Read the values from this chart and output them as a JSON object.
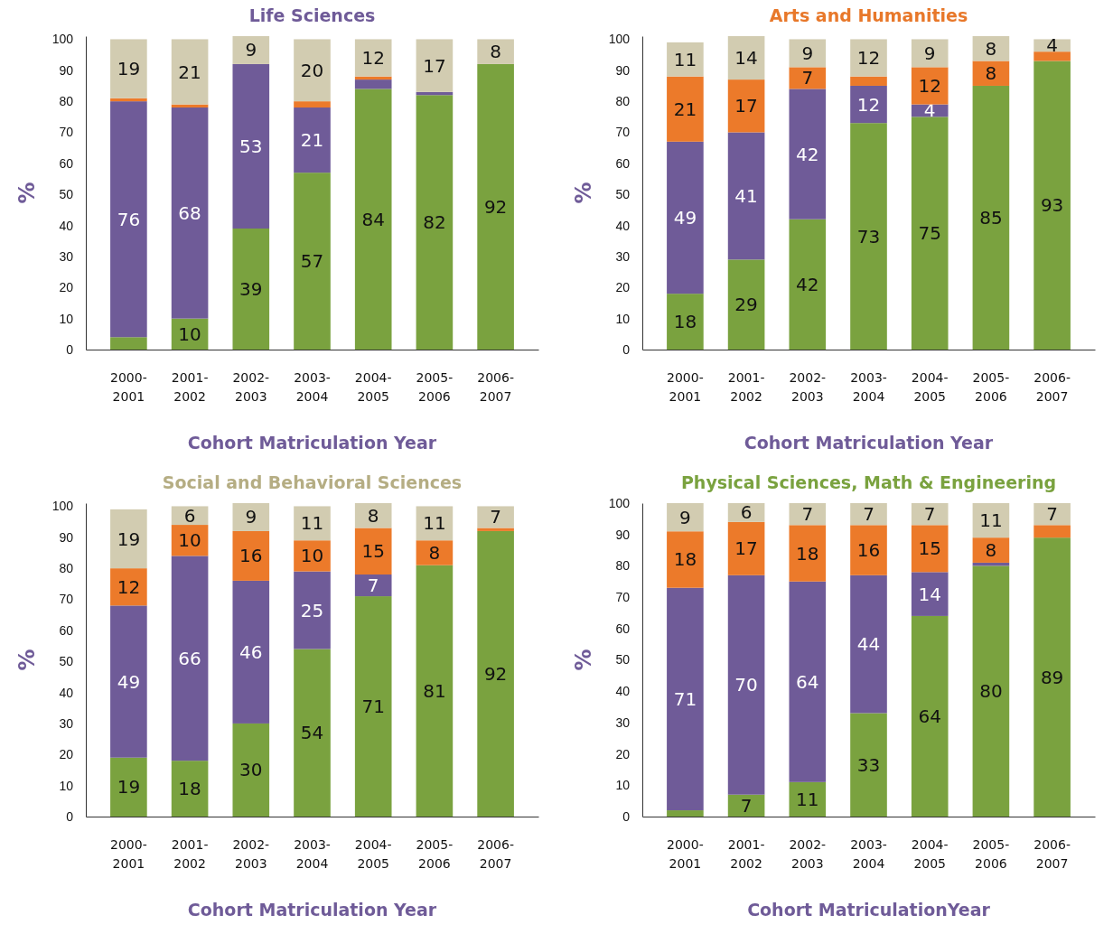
{
  "chart_data": [
    {
      "type": "bar",
      "title": "Life Sciences",
      "xlabel": "Cohort Matriculation Year",
      "ylabel": "%",
      "stacked": true,
      "categories": [
        "2000-2001",
        "2001-2002",
        "2002-2003",
        "2003-2004",
        "2004-2005",
        "2005-2006",
        "2006-2007"
      ],
      "ylim": [
        0,
        101
      ],
      "yticks": [
        0,
        10,
        20,
        30,
        40,
        50,
        60,
        70,
        80,
        90,
        100
      ],
      "grid": false,
      "series": [
        {
          "color": "#7aa23f",
          "values": [
            4,
            10,
            39,
            57,
            84,
            82,
            92
          ],
          "value_labels": [
            null,
            "10",
            "39",
            "57",
            "84",
            "82",
            "92"
          ]
        },
        {
          "color": "#6f5b98",
          "values": [
            76,
            68,
            53,
            21,
            3,
            1,
            0
          ],
          "value_labels": [
            "76",
            "68",
            "53",
            "21",
            null,
            null,
            null
          ]
        },
        {
          "color": "#ec7a2a",
          "values": [
            1,
            1,
            0,
            2,
            1,
            0,
            0
          ],
          "value_labels": [
            null,
            null,
            null,
            null,
            null,
            null,
            null
          ]
        },
        {
          "color": "#d2ccb1",
          "values": [
            19,
            21,
            9,
            20,
            12,
            17,
            8
          ],
          "value_labels": [
            "19",
            "21",
            "9",
            "20",
            "12",
            "17",
            "8"
          ]
        }
      ]
    },
    {
      "type": "bar",
      "title": "Arts and Humanities",
      "xlabel": "Cohort Matriculation Year",
      "ylabel": "%",
      "stacked": true,
      "categories": [
        "2000-2001",
        "2001-2002",
        "2002-2003",
        "2003-2004",
        "2004-2005",
        "2005-2006",
        "2006-2007"
      ],
      "ylim": [
        0,
        101
      ],
      "yticks": [
        0,
        10,
        20,
        30,
        40,
        50,
        60,
        70,
        80,
        90,
        100
      ],
      "grid": false,
      "series": [
        {
          "color": "#7aa23f",
          "values": [
            18,
            29,
            42,
            73,
            75,
            85,
            93
          ],
          "value_labels": [
            "18",
            "29",
            "42",
            "73",
            "75",
            "85",
            "93"
          ]
        },
        {
          "color": "#6f5b98",
          "values": [
            49,
            41,
            42,
            12,
            4,
            0,
            0
          ],
          "value_labels": [
            "49",
            "41",
            "42",
            "12",
            "4",
            null,
            null
          ]
        },
        {
          "color": "#ec7a2a",
          "values": [
            21,
            17,
            7,
            3,
            12,
            8,
            3
          ],
          "value_labels": [
            "21",
            "17",
            "7",
            null,
            "12",
            "8",
            null
          ]
        },
        {
          "color": "#d2ccb1",
          "values": [
            11,
            14,
            9,
            12,
            9,
            8,
            4
          ],
          "value_labels": [
            "11",
            "14",
            "9",
            "12",
            "9",
            "8",
            "4"
          ]
        }
      ]
    },
    {
      "type": "bar",
      "title": "Social and Behavioral Sciences",
      "xlabel": "Cohort Matriculation Year",
      "ylabel": "%",
      "stacked": true,
      "categories": [
        "2000-2001",
        "2001-2002",
        "2002-2003",
        "2003-2004",
        "2004-2005",
        "2005-2006",
        "2006-2007"
      ],
      "ylim": [
        0,
        101
      ],
      "yticks": [
        0,
        10,
        20,
        30,
        40,
        50,
        60,
        70,
        80,
        90,
        100
      ],
      "grid": false,
      "series": [
        {
          "color": "#7aa23f",
          "values": [
            19,
            18,
            30,
            54,
            71,
            81,
            92
          ],
          "value_labels": [
            "19",
            "18",
            "30",
            "54",
            "71",
            "81",
            "92"
          ]
        },
        {
          "color": "#6f5b98",
          "values": [
            49,
            66,
            46,
            25,
            7,
            0,
            0
          ],
          "value_labels": [
            "49",
            "66",
            "46",
            "25",
            "7",
            null,
            null
          ]
        },
        {
          "color": "#ec7a2a",
          "values": [
            12,
            10,
            16,
            10,
            15,
            8,
            1
          ],
          "value_labels": [
            "12",
            "10",
            "16",
            "10",
            "15",
            "8",
            null
          ]
        },
        {
          "color": "#d2ccb1",
          "values": [
            19,
            6,
            9,
            11,
            8,
            11,
            7
          ],
          "value_labels": [
            "19",
            "6",
            "9",
            "11",
            "8",
            "11",
            "7"
          ]
        }
      ]
    },
    {
      "type": "bar",
      "title": "Physical Sciences, Math & Engineering",
      "xlabel": "Cohort MatriculationYear",
      "ylabel": "%",
      "stacked": true,
      "categories": [
        "2000-2001",
        "2001-2002",
        "2002-2003",
        "2003-2004",
        "2004-2005",
        "2005-2006",
        "2006-2007"
      ],
      "ylim": [
        0,
        100
      ],
      "yticks": [
        0,
        10,
        20,
        30,
        40,
        50,
        60,
        70,
        80,
        90,
        100
      ],
      "grid": false,
      "series": [
        {
          "color": "#7aa23f",
          "values": [
            2,
            7,
            11,
            33,
            64,
            80,
            89
          ],
          "value_labels": [
            null,
            "7",
            "11",
            "33",
            "64",
            "80",
            "89"
          ]
        },
        {
          "color": "#6f5b98",
          "values": [
            71,
            70,
            64,
            44,
            14,
            1,
            0
          ],
          "value_labels": [
            "71",
            "70",
            "64",
            "44",
            "14",
            null,
            null
          ]
        },
        {
          "color": "#ec7a2a",
          "values": [
            18,
            17,
            18,
            16,
            15,
            8,
            4
          ],
          "value_labels": [
            "18",
            "17",
            "18",
            "16",
            "15",
            "8",
            null
          ]
        },
        {
          "color": "#d2ccb1",
          "values": [
            9,
            6,
            7,
            7,
            7,
            11,
            7
          ],
          "value_labels": [
            "9",
            "6",
            "7",
            "7",
            "7",
            "11",
            "7"
          ]
        }
      ]
    }
  ]
}
